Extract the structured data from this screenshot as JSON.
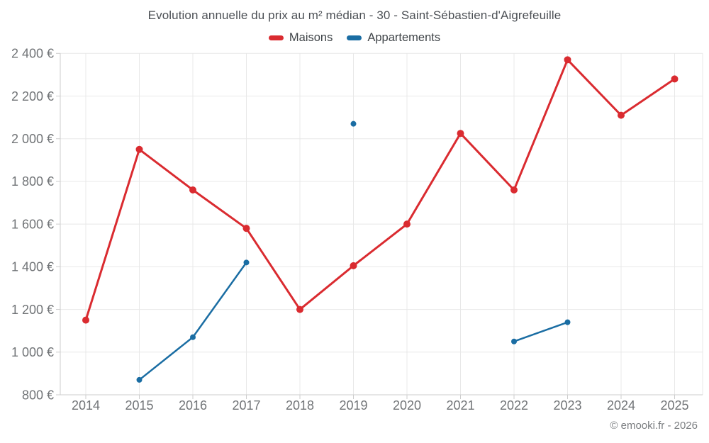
{
  "page": {
    "title": "Evolution annuelle du prix au m² médian - 30 - Saint-Sébastien-d'Aigrefeuille",
    "copyright": "© emooki.fr - 2026"
  },
  "colors": {
    "background": "#ffffff",
    "grid": "#e8e8e8",
    "axis_line": "#cdcdcd",
    "axis_text": "#717477",
    "title_text": "#4c5055",
    "legend_text": "#3e4347",
    "copyright_text": "#7b7e81",
    "maisons": "#da2b30",
    "appartements": "#1a6da3"
  },
  "chart_data": {
    "type": "line",
    "title": "Evolution annuelle du prix au m² médian - 30 - Saint-Sébastien-d'Aigrefeuille",
    "categories": [
      "2014",
      "2015",
      "2016",
      "2017",
      "2018",
      "2019",
      "2020",
      "2021",
      "2022",
      "2023",
      "2024",
      "2025"
    ],
    "series": [
      {
        "name": "Maisons",
        "color": "#da2b30",
        "line_width": 3,
        "point_radius": 5,
        "values": [
          1150,
          1950,
          1760,
          1580,
          1200,
          1405,
          1600,
          2025,
          1760,
          2370,
          2110,
          2280
        ]
      },
      {
        "name": "Appartements",
        "color": "#1a6da3",
        "line_width": 2.5,
        "point_radius": 4,
        "values": [
          null,
          870,
          1070,
          1420,
          null,
          2070,
          null,
          null,
          1050,
          1140,
          null,
          null
        ]
      }
    ],
    "ylim": [
      800,
      2400
    ],
    "ytick_step": 200,
    "ytick_suffix": " €",
    "thousands_separator": " ",
    "grid": true,
    "legend_position": "top",
    "xlabel": "",
    "ylabel": ""
  }
}
